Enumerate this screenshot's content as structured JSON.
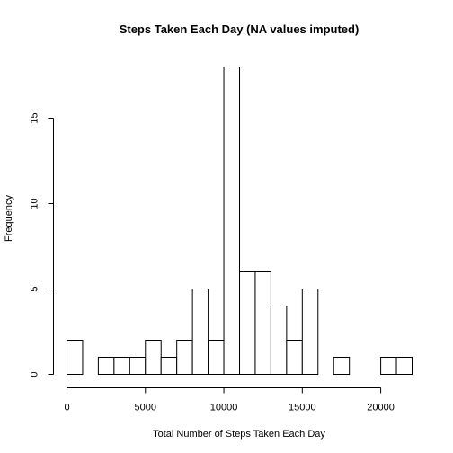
{
  "chart_data": {
    "type": "bar",
    "title": "Steps Taken Each Day (NA values imputed)",
    "xlabel": "Total Number of Steps Taken Each Day",
    "ylabel": "Frequency",
    "bin_width": 1000,
    "bins": [
      {
        "start": 0,
        "end": 1000,
        "count": 2
      },
      {
        "start": 1000,
        "end": 2000,
        "count": 0
      },
      {
        "start": 2000,
        "end": 3000,
        "count": 1
      },
      {
        "start": 3000,
        "end": 4000,
        "count": 1
      },
      {
        "start": 4000,
        "end": 5000,
        "count": 1
      },
      {
        "start": 5000,
        "end": 6000,
        "count": 2
      },
      {
        "start": 6000,
        "end": 7000,
        "count": 1
      },
      {
        "start": 7000,
        "end": 8000,
        "count": 2
      },
      {
        "start": 8000,
        "end": 9000,
        "count": 5
      },
      {
        "start": 9000,
        "end": 10000,
        "count": 2
      },
      {
        "start": 10000,
        "end": 11000,
        "count": 18
      },
      {
        "start": 11000,
        "end": 12000,
        "count": 6
      },
      {
        "start": 12000,
        "end": 13000,
        "count": 6
      },
      {
        "start": 13000,
        "end": 14000,
        "count": 4
      },
      {
        "start": 14000,
        "end": 15000,
        "count": 2
      },
      {
        "start": 15000,
        "end": 16000,
        "count": 5
      },
      {
        "start": 16000,
        "end": 17000,
        "count": 0
      },
      {
        "start": 17000,
        "end": 18000,
        "count": 1
      },
      {
        "start": 18000,
        "end": 19000,
        "count": 0
      },
      {
        "start": 19000,
        "end": 20000,
        "count": 0
      },
      {
        "start": 20000,
        "end": 21000,
        "count": 1
      },
      {
        "start": 21000,
        "end": 22000,
        "count": 1
      }
    ],
    "xlim": [
      0,
      22000
    ],
    "ylim": [
      0,
      18
    ],
    "x_ticks": [
      0,
      5000,
      10000,
      15000,
      20000
    ],
    "y_ticks": [
      0,
      5,
      10,
      15
    ],
    "grid": false,
    "legend": "none"
  }
}
